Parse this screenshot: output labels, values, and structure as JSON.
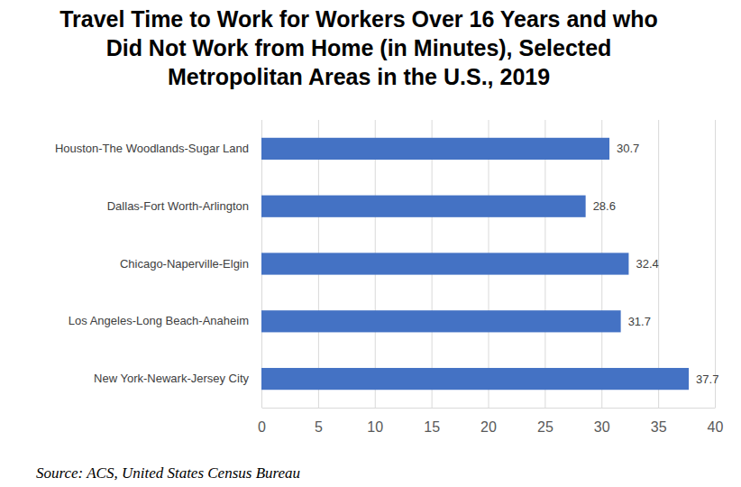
{
  "chart_data": {
    "type": "bar",
    "title": "Travel Time to Work for Workers Over 16 Years and who Did Not Work from Home (in Minutes), Selected Metropolitan Areas in the U.S., 2019",
    "source": "Source: ACS, United States Census Bureau",
    "orientation": "horizontal",
    "categories": [
      "Houston-The Woodlands-Sugar Land",
      "Dallas-Fort Worth-Arlington",
      "Chicago-Naperville-Elgin",
      "Los Angeles-Long Beach-Anaheim",
      "New York-Newark-Jersey City"
    ],
    "values": [
      30.7,
      28.6,
      32.4,
      31.7,
      37.7
    ],
    "color": "#4472c4",
    "xlim": [
      0,
      40
    ],
    "xticks": [
      0,
      5,
      10,
      15,
      20,
      25,
      30,
      35,
      40
    ],
    "grid": true,
    "data_labels": true
  }
}
